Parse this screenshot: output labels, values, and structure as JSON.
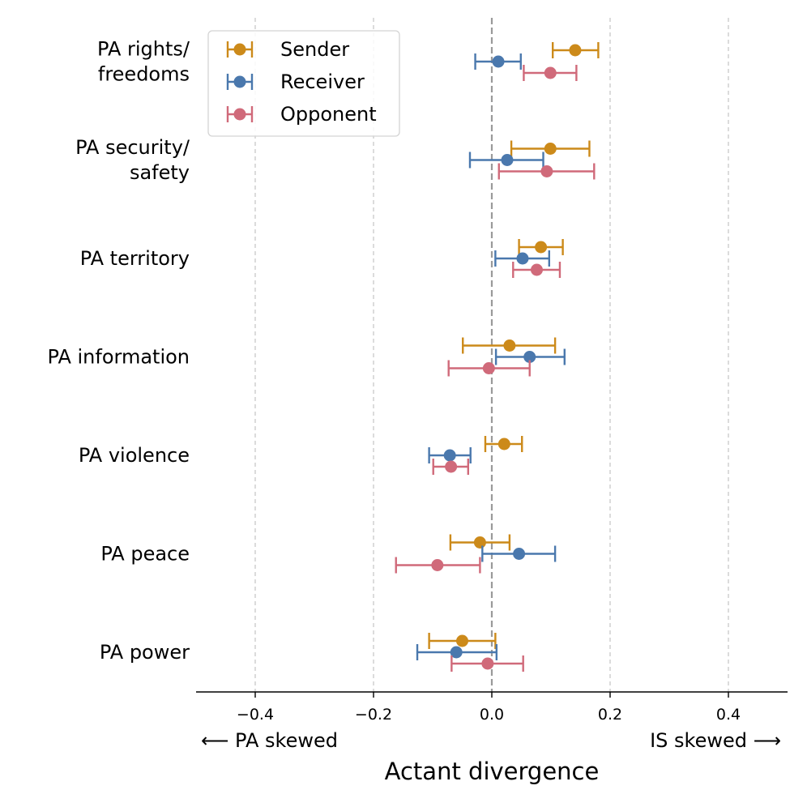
{
  "chart_data": {
    "type": "errorbar",
    "xlabel": "Actant divergence",
    "xlim": [
      -0.5,
      0.5
    ],
    "xticks": [
      -0.4,
      -0.2,
      0.0,
      0.2,
      0.4
    ],
    "xtick_labels": [
      "−0.4",
      "−0.2",
      "0.0",
      "0.2",
      "0.4"
    ],
    "left_annotation": "⟵ PA skewed",
    "right_annotation": "IS skewed ⟶",
    "grid": "vertical dashed at major ticks",
    "legend_position": "top-left",
    "categories": [
      [
        "PA rights/",
        "freedoms"
      ],
      [
        "PA security/",
        "safety"
      ],
      [
        "PA territory"
      ],
      [
        "PA information"
      ],
      [
        "PA violence"
      ],
      [
        "PA peace"
      ],
      [
        "PA power"
      ]
    ],
    "series": [
      {
        "name": "Sender",
        "color": "#cc8a1a",
        "values": [
          0.141,
          0.099,
          0.083,
          0.03,
          0.021,
          -0.02,
          -0.05
        ],
        "lower": [
          0.103,
          0.033,
          0.046,
          -0.049,
          -0.011,
          -0.07,
          -0.106
        ],
        "upper": [
          0.18,
          0.165,
          0.12,
          0.107,
          0.051,
          0.03,
          0.006
        ]
      },
      {
        "name": "Receiver",
        "color": "#4a78ad",
        "values": [
          0.011,
          0.026,
          0.052,
          0.064,
          -0.071,
          0.046,
          -0.06
        ],
        "lower": [
          -0.028,
          -0.037,
          0.006,
          0.007,
          -0.106,
          -0.016,
          -0.126
        ],
        "upper": [
          0.049,
          0.087,
          0.097,
          0.123,
          -0.036,
          0.107,
          0.008
        ]
      },
      {
        "name": "Opponent",
        "color": "#d06a7a",
        "values": [
          0.099,
          0.093,
          0.076,
          -0.005,
          -0.069,
          -0.092,
          -0.007
        ],
        "lower": [
          0.054,
          0.012,
          0.036,
          -0.073,
          -0.099,
          -0.162,
          -0.068
        ],
        "upper": [
          0.143,
          0.173,
          0.115,
          0.064,
          -0.04,
          -0.02,
          0.053
        ]
      }
    ]
  }
}
